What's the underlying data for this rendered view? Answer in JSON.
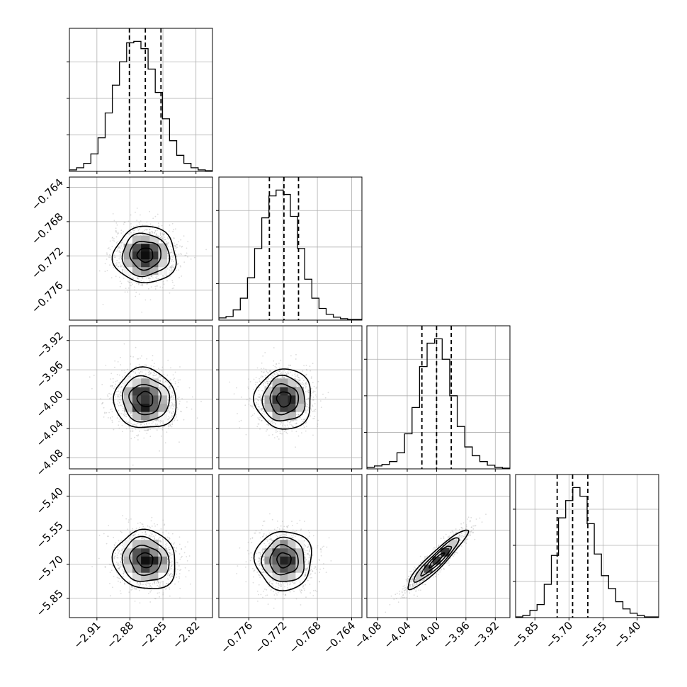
{
  "chart_data": {
    "type": "corner",
    "grid": true,
    "quantiles": [
      0.16,
      0.5,
      0.84
    ],
    "colors": {
      "ink": "#000000",
      "samples": "#9a9a9a",
      "grid": "#b0b0b0",
      "background": "#ffffff"
    },
    "parameters": [
      {
        "range": [
          -2.935,
          -2.805
        ],
        "ticks": [
          -2.91,
          -2.88,
          -2.85,
          -2.82
        ],
        "tick_labels": [
          "−2.91",
          "−2.88",
          "−2.85",
          "−2.82"
        ],
        "mean": -2.866,
        "std": 0.0142,
        "quantile_values": [
          -2.8805,
          -2.866,
          -2.8518
        ],
        "histogram_counts": [
          2,
          5,
          11,
          24,
          46,
          80,
          118,
          150,
          176,
          178,
          168,
          140,
          108,
          72,
          42,
          22,
          11,
          5,
          2,
          1
        ]
      },
      {
        "range": [
          -0.7795,
          -0.7628
        ],
        "ticks": [
          -0.776,
          -0.772,
          -0.768,
          -0.764
        ],
        "tick_labels": [
          "−0.776",
          "−0.772",
          "−0.768",
          "−0.764"
        ],
        "mean": -0.7719,
        "std": 0.00165,
        "quantile_values": [
          -0.7736,
          -0.7719,
          -0.7702
        ],
        "histogram_counts": [
          3,
          5,
          14,
          30,
          58,
          98,
          140,
          170,
          178,
          172,
          142,
          98,
          56,
          30,
          16,
          8,
          4,
          2,
          1,
          1
        ]
      },
      {
        "range": [
          -4.095,
          -3.9
        ],
        "ticks": [
          -4.08,
          -4.04,
          -4.0,
          -3.96,
          -3.92
        ],
        "tick_labels": [
          "−4.08",
          "−4.04",
          "−4.00",
          "−3.96",
          "−3.92"
        ],
        "mean": -4.0,
        "std": 0.0205,
        "quantile_values": [
          -4.02,
          -4.0,
          -3.98
        ],
        "histogram_counts": [
          2,
          4,
          6,
          10,
          22,
          48,
          84,
          140,
          172,
          178,
          150,
          100,
          58,
          30,
          18,
          10,
          5,
          2,
          1
        ]
      },
      {
        "range": [
          -5.935,
          -5.305
        ],
        "ticks": [
          -5.85,
          -5.7,
          -5.55,
          -5.4
        ],
        "tick_labels": [
          "−5.85",
          "−5.70",
          "−5.55",
          "−5.40"
        ],
        "mean": -5.682,
        "std": 0.065,
        "quantile_values": [
          -5.752,
          -5.684,
          -5.617
        ],
        "histogram_counts": [
          1,
          3,
          10,
          18,
          46,
          86,
          138,
          162,
          180,
          168,
          130,
          88,
          58,
          40,
          22,
          12,
          6,
          3,
          1,
          1
        ]
      }
    ],
    "correlations": {
      "1-0": 0.0,
      "2-0": -0.05,
      "2-1": 0.0,
      "3-0": -0.08,
      "3-1": 0.0,
      "3-2": 0.93
    },
    "contour_levels_sigma": [
      0.5,
      1.0,
      1.5,
      2.0
    ]
  }
}
